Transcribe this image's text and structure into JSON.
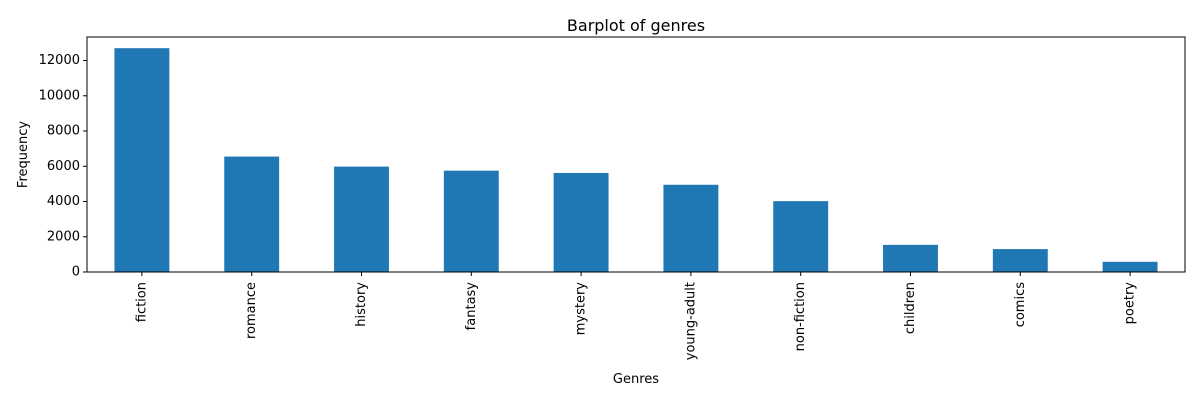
{
  "chart_data": {
    "type": "bar",
    "title": "Barplot of genres",
    "xlabel": "Genres",
    "ylabel": "Frequency",
    "categories": [
      "fiction",
      "romance",
      "history",
      "fantasy",
      "mystery",
      "young-adult",
      "non-fiction",
      "children",
      "comics",
      "poetry"
    ],
    "values": [
      12700,
      6550,
      5980,
      5750,
      5620,
      4950,
      4020,
      1540,
      1300,
      580
    ],
    "ylim": [
      0,
      13335
    ],
    "yticks": [
      0,
      2000,
      4000,
      6000,
      8000,
      10000,
      12000
    ],
    "ytick_labels": [
      "0",
      "2000",
      "4000",
      "6000",
      "8000",
      "10000",
      "12000"
    ],
    "bar_color": "#1f77b4",
    "grid": false,
    "legend": false,
    "xtick_rotation": "vertical"
  }
}
